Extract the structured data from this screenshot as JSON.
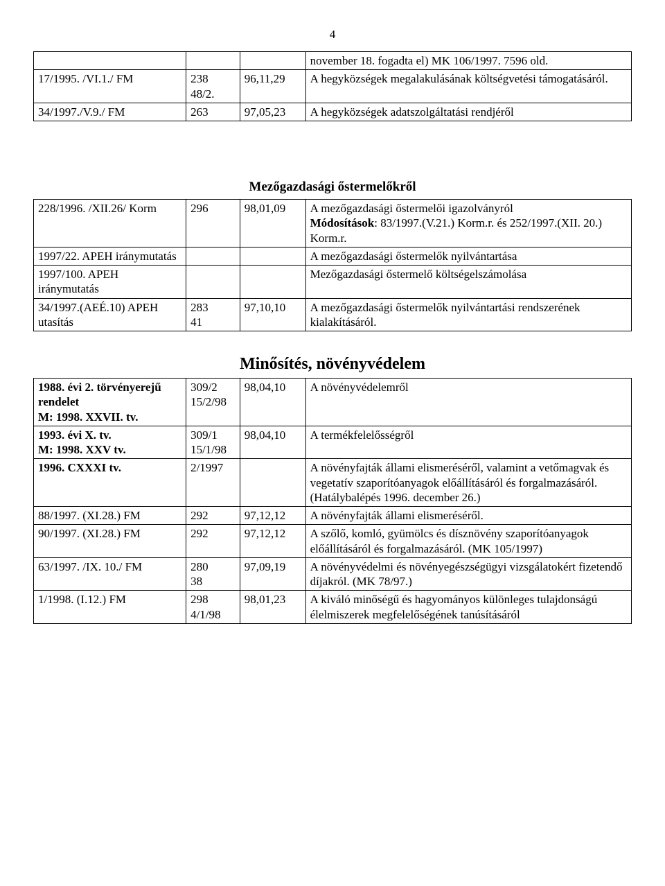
{
  "page_number": "4",
  "tables": {
    "t1": {
      "rows": [
        {
          "c0": "",
          "c1": "",
          "c2": "",
          "c3": "november 18. fogadta el) MK 106/1997. 7596 old."
        },
        {
          "c0": "17/1995. /VI.1./ FM",
          "c1": "238\n48/2.",
          "c2": "96,11,29",
          "c3": "A hegyközségek megalakulásának költségvetési támogatásáról."
        },
        {
          "c0": "34/1997./V.9./ FM",
          "c1": "263",
          "c2": "97,05,23",
          "c3": "A hegyközségek adatszolgáltatási rendjéről"
        }
      ]
    },
    "t2": {
      "title": "Mezőgazdasági őstermelőkről",
      "rows": [
        {
          "c0": "228/1996. /XII.26/ Korm",
          "c1": "296",
          "c2": "98,01,09",
          "c3": "A mezőgazdasági őstermelői igazolványról\nMódosítások: 83/1997.(V.21.) Korm.r. és 252/1997.(XII. 20.) Korm.r."
        },
        {
          "c0": "1997/22. APEH iránymutatás",
          "c1": "",
          "c2": "",
          "c3": "A mezőgazdasági őstermelők nyilvántartása"
        },
        {
          "c0": "1997/100. APEH iránymutatás",
          "c1": "",
          "c2": "",
          "c3": "Mezőgazdasági őstermelő költségelszámolása"
        },
        {
          "c0": "34/1997.(AEÉ.10) APEH utasítás",
          "c1": "283\n41",
          "c2": "97,10,10",
          "c3": "A mezőgazdasági őstermelők nyilvántartási rendszerének kialakításáról."
        }
      ]
    },
    "t3": {
      "title": "Minősítés, növényvédelem",
      "rows": [
        {
          "c0": "1988. évi 2. törvényerejű rendelet\nM: 1998. XXVII. tv.",
          "c1": "309/2\n15/2/98",
          "c2": "98,04,10",
          "c3": "A növényvédelemről"
        },
        {
          "c0": "1993. évi X. tv.\nM:  1998. XXV tv.",
          "c1": "309/1\n15/1/98",
          "c2": "98,04,10",
          "c3": "A termékfelelősségről"
        },
        {
          "c0": "1996. CXXXI tv.",
          "c1": "2/1997",
          "c2": "",
          "c3": "A növényfajták állami elismeréséről, valamint a vetőmagvak és vegetatív szaporítóanyagok előállításáról és forgalmazásáról.\n(Hatálybalépés 1996. december 26.)"
        },
        {
          "c0": "88/1997. (XI.28.) FM",
          "c1": "292",
          "c2": "97,12,12",
          "c3": "A növényfajták állami elismeréséről."
        },
        {
          "c0": "90/1997. (XI.28.) FM",
          "c1": "292",
          "c2": "97,12,12",
          "c3": "A szőlő, komló, gyümölcs és dísznövény szaporítóanyagok előállításáról és forgalmazásáról. (MK 105/1997)"
        },
        {
          "c0": "63/1997. /IX. 10./ FM",
          "c1": "280\n38",
          "c2": "97,09,19",
          "c3": "A növényvédelmi és növényegészségügyi vizsgálatokért fizetendő díjakról. (MK 78/97.)"
        },
        {
          "c0": "1/1998. (I.12.)  FM",
          "c1": "298\n4/1/98",
          "c2": "98,01,23",
          "c3": "A kiváló minőségű és hagyományos különleges  tulajdonságú élelmiszerek megfelelőségének tanúsításáról"
        }
      ]
    }
  }
}
